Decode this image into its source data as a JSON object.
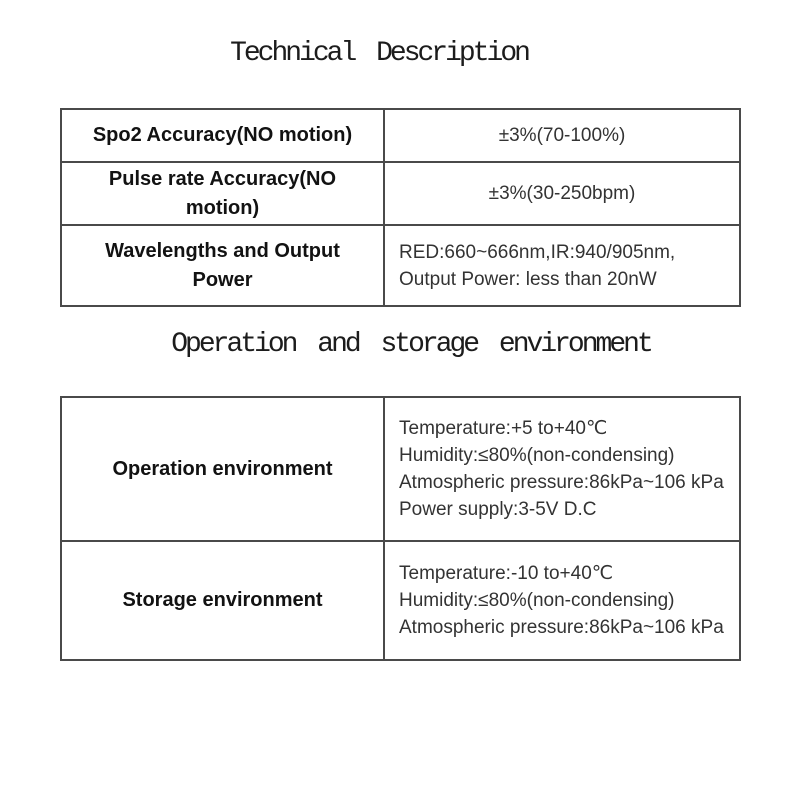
{
  "headings": {
    "technical": "Technical Description",
    "environment": "Operation and storage environment"
  },
  "colors": {
    "background": "#ffffff",
    "table_border": "#4a4a4a",
    "label_text": "#121212",
    "value_text": "#333333",
    "heading_text": "#1c1c1c"
  },
  "tables": [
    {
      "name": "technical-description",
      "rows": [
        {
          "label": "Spo2 Accuracy(NO motion)",
          "value_lines": [
            "±3%(70-100%)"
          ]
        },
        {
          "label": "Pulse rate Accuracy(NO motion)",
          "value_lines": [
            "±3%(30-250bpm)"
          ]
        },
        {
          "label": "Wavelengths and Output Power",
          "value_lines": [
            "RED:660~666nm,IR:940/905nm,",
            "Output Power: less than 20nW"
          ]
        }
      ]
    },
    {
      "name": "operation-storage-environment",
      "rows": [
        {
          "label": "Operation environment",
          "value_lines": [
            "Temperature:+5 to+40℃",
            "Humidity:≤80%(non-condensing)",
            "Atmospheric pressure:86kPa~106 kPa",
            "Power supply:3-5V D.C"
          ]
        },
        {
          "label": "Storage environment",
          "value_lines": [
            "Temperature:-10 to+40℃",
            "Humidity:≤80%(non-condensing)",
            "Atmospheric pressure:86kPa~106 kPa"
          ]
        }
      ]
    }
  ]
}
